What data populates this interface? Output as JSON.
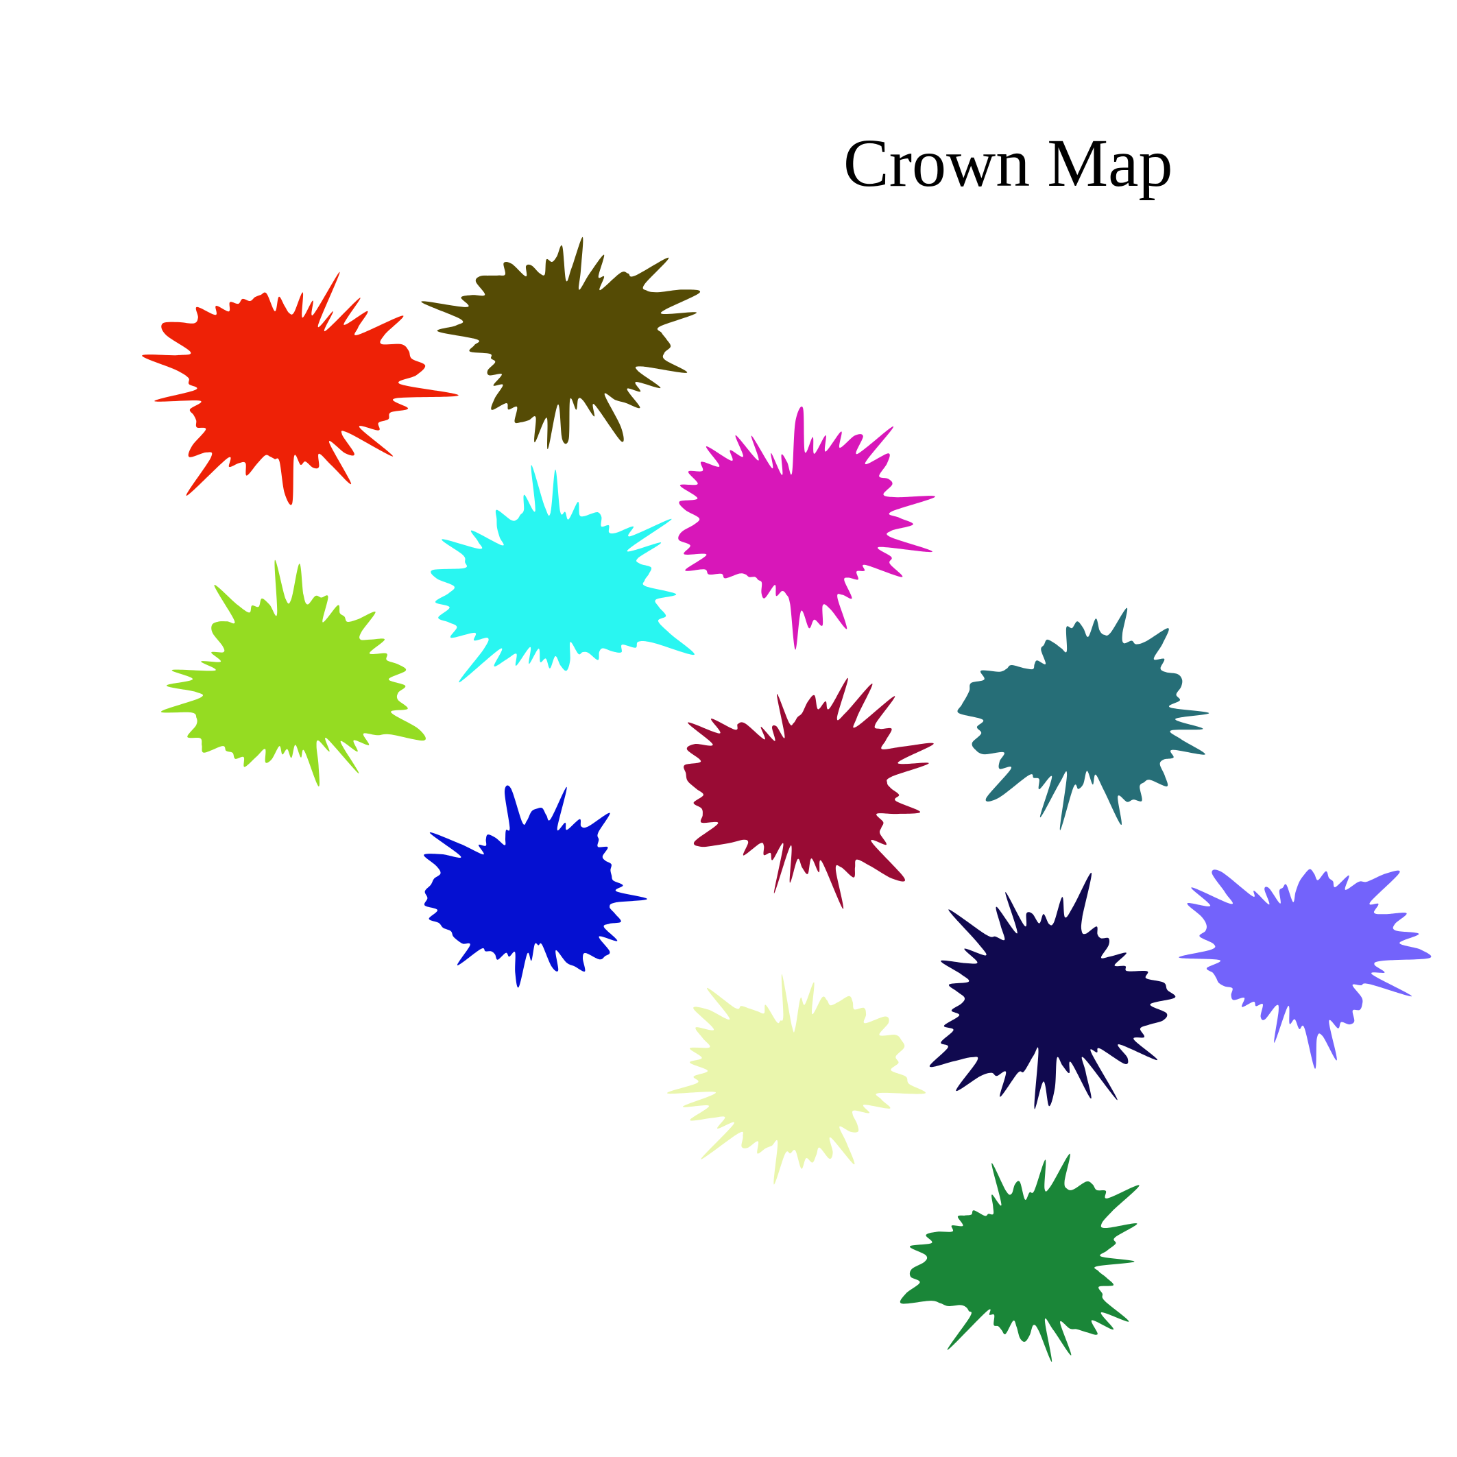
{
  "title": "Crown Map",
  "crowns": [
    {
      "name": "red",
      "color": "#ee2106"
    },
    {
      "name": "olive",
      "color": "#554b05"
    },
    {
      "name": "magenta",
      "color": "#d817b9"
    },
    {
      "name": "cyan",
      "color": "#29f6f1"
    },
    {
      "name": "lime",
      "color": "#95dc22"
    },
    {
      "name": "teal",
      "color": "#266e77"
    },
    {
      "name": "crimson",
      "color": "#990b34"
    },
    {
      "name": "blue",
      "color": "#0510d1"
    },
    {
      "name": "navy",
      "color": "#10094f"
    },
    {
      "name": "periwinkle",
      "color": "#7363fb"
    },
    {
      "name": "pale-yellow",
      "color": "#eaf6ad"
    },
    {
      "name": "green",
      "color": "#1a8638"
    }
  ]
}
